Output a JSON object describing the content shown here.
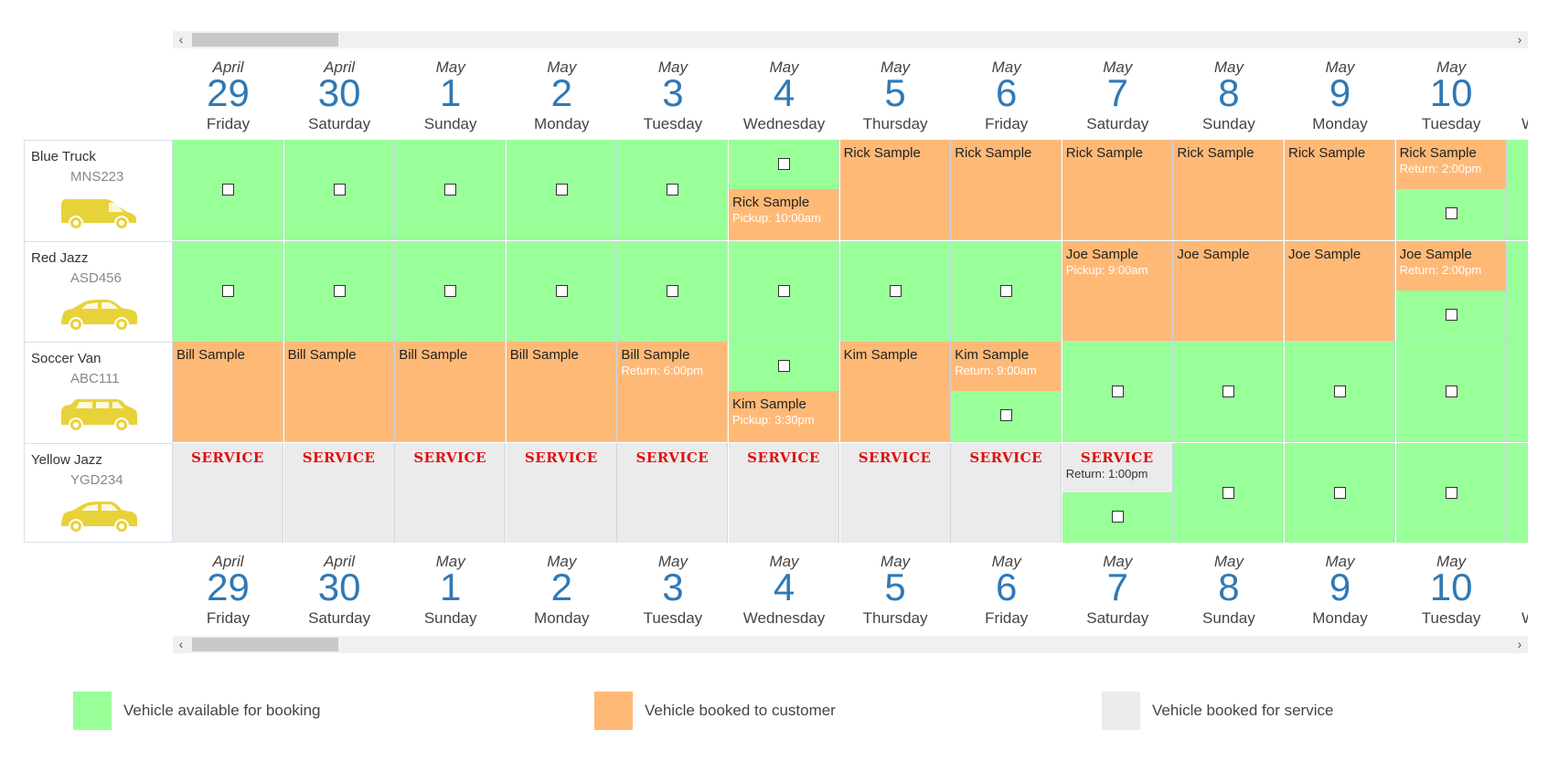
{
  "scroll": {
    "left_arrow": "‹",
    "right_arrow": "›"
  },
  "dates": [
    {
      "month": "April",
      "day": "29",
      "weekday": "Friday"
    },
    {
      "month": "April",
      "day": "30",
      "weekday": "Saturday"
    },
    {
      "month": "May",
      "day": "1",
      "weekday": "Sunday"
    },
    {
      "month": "May",
      "day": "2",
      "weekday": "Monday"
    },
    {
      "month": "May",
      "day": "3",
      "weekday": "Tuesday"
    },
    {
      "month": "May",
      "day": "4",
      "weekday": "Wednesday"
    },
    {
      "month": "May",
      "day": "5",
      "weekday": "Thursday"
    },
    {
      "month": "May",
      "day": "6",
      "weekday": "Friday"
    },
    {
      "month": "May",
      "day": "7",
      "weekday": "Saturday"
    },
    {
      "month": "May",
      "day": "8",
      "weekday": "Sunday"
    },
    {
      "month": "May",
      "day": "9",
      "weekday": "Monday"
    },
    {
      "month": "May",
      "day": "10",
      "weekday": "Tuesday"
    },
    {
      "month": "",
      "day": "",
      "weekday": "Wednesday"
    }
  ],
  "vehicles": [
    {
      "name": "Blue Truck",
      "plate": "MNS223",
      "icon": "van-icon"
    },
    {
      "name": "Red Jazz",
      "plate": "ASD456",
      "icon": "sedan-icon"
    },
    {
      "name": "Soccer Van",
      "plate": "ABC111",
      "icon": "suv-icon"
    },
    {
      "name": "Yellow Jazz",
      "plate": "YGD234",
      "icon": "hatchback-icon"
    }
  ],
  "labels": {
    "service": "SERVICE"
  },
  "grid": [
    [
      {
        "type": "available"
      },
      {
        "type": "available"
      },
      {
        "type": "available"
      },
      {
        "type": "available"
      },
      {
        "type": "available"
      },
      {
        "type": "pickup",
        "name": "Rick Sample",
        "time": "Pickup: 10:00am"
      },
      {
        "type": "booked",
        "name": "Rick Sample"
      },
      {
        "type": "booked",
        "name": "Rick Sample"
      },
      {
        "type": "booked",
        "name": "Rick Sample"
      },
      {
        "type": "booked",
        "name": "Rick Sample"
      },
      {
        "type": "booked",
        "name": "Rick Sample"
      },
      {
        "type": "return",
        "name": "Rick Sample",
        "time": "Return: 2:00pm"
      },
      {
        "type": "available_nocb"
      }
    ],
    [
      {
        "type": "available"
      },
      {
        "type": "available"
      },
      {
        "type": "available"
      },
      {
        "type": "available"
      },
      {
        "type": "available"
      },
      {
        "type": "available"
      },
      {
        "type": "available"
      },
      {
        "type": "available"
      },
      {
        "type": "booked",
        "name": "Joe Sample",
        "time": "Pickup: 9:00am"
      },
      {
        "type": "booked",
        "name": "Joe Sample"
      },
      {
        "type": "booked",
        "name": "Joe Sample"
      },
      {
        "type": "return",
        "name": "Joe Sample",
        "time": "Return: 2:00pm"
      },
      {
        "type": "available_nocb"
      }
    ],
    [
      {
        "type": "booked",
        "name": "Bill Sample"
      },
      {
        "type": "booked",
        "name": "Bill Sample"
      },
      {
        "type": "booked",
        "name": "Bill Sample"
      },
      {
        "type": "booked",
        "name": "Bill Sample"
      },
      {
        "type": "booked",
        "name": "Bill Sample",
        "time": "Return: 6:00pm"
      },
      {
        "type": "pickup",
        "name": "Kim Sample",
        "time": "Pickup: 3:30pm"
      },
      {
        "type": "booked",
        "name": "Kim Sample"
      },
      {
        "type": "return",
        "name": "Kim Sample",
        "time": "Return: 9:00am"
      },
      {
        "type": "available"
      },
      {
        "type": "available"
      },
      {
        "type": "available"
      },
      {
        "type": "available"
      },
      {
        "type": "available_nocb"
      }
    ],
    [
      {
        "type": "service"
      },
      {
        "type": "service"
      },
      {
        "type": "service"
      },
      {
        "type": "service"
      },
      {
        "type": "service"
      },
      {
        "type": "service"
      },
      {
        "type": "service"
      },
      {
        "type": "service"
      },
      {
        "type": "service_return",
        "time": "Return: 1:00pm"
      },
      {
        "type": "available"
      },
      {
        "type": "available"
      },
      {
        "type": "available"
      },
      {
        "type": "available_nocb"
      }
    ]
  ],
  "legend": [
    {
      "label": "Vehicle available for booking",
      "color": "#99ff99"
    },
    {
      "label": "Vehicle booked to customer",
      "color": "#ffb977"
    },
    {
      "label": "Vehicle booked for service",
      "color": "#ebebeb"
    }
  ],
  "colors": {
    "available": "#99ff99",
    "booked": "#ffb977",
    "service": "#ebebeb",
    "day_number": "#2f79b6",
    "service_text": "#e01010"
  }
}
